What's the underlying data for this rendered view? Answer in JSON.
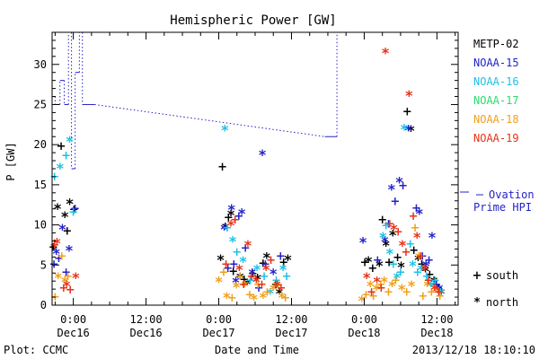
{
  "chart_data": {
    "type": "scatter",
    "title": "Hemispheric Power [GW]",
    "ylabel": "P [GW]",
    "xlabel": "Date and Time",
    "x_unit": "hours relative to 2013-12-16 00:00 UT",
    "xlim": [
      -3.5,
      63.5
    ],
    "ylim": [
      0,
      34
    ],
    "yticks": [
      0,
      5,
      10,
      15,
      20,
      25,
      30
    ],
    "xticks": [
      {
        "x": 0,
        "time": "0:00",
        "date": "Dec16"
      },
      {
        "x": 12,
        "time": "12:00",
        "date": "Dec16"
      },
      {
        "x": 24,
        "time": "0:00",
        "date": "Dec17"
      },
      {
        "x": 36,
        "time": "12:00",
        "date": "Dec17"
      },
      {
        "x": 48,
        "time": "0:00",
        "date": "Dec18"
      },
      {
        "x": 60,
        "time": "12:00",
        "date": "Dec18"
      }
    ],
    "legend_position": "right",
    "series": [
      {
        "name": "METP-02",
        "color": "#000000",
        "points": [
          [
            -3.3,
            7.2
          ],
          [
            -2.6,
            12.2
          ],
          [
            -2.0,
            19.8
          ],
          [
            -1.4,
            11.2
          ],
          [
            -1.0,
            9.2
          ],
          [
            -0.6,
            12.8
          ],
          [
            0.1,
            11.9
          ],
          [
            24.3,
            5.8
          ],
          [
            24.6,
            17.2
          ],
          [
            25.1,
            9.8
          ],
          [
            25.6,
            10.9
          ],
          [
            26.0,
            11.4
          ],
          [
            26.4,
            4.2
          ],
          [
            27.5,
            3.6
          ],
          [
            28.2,
            3.2
          ],
          [
            28.7,
            2.8
          ],
          [
            29.6,
            3.9
          ],
          [
            30.4,
            3.4
          ],
          [
            31.3,
            5.2
          ],
          [
            31.9,
            6.1
          ],
          [
            33.4,
            2.6
          ],
          [
            34.0,
            1.6
          ],
          [
            34.7,
            5.3
          ],
          [
            35.4,
            5.8
          ],
          [
            48.1,
            5.3
          ],
          [
            48.7,
            5.6
          ],
          [
            49.4,
            4.6
          ],
          [
            50.5,
            5.1
          ],
          [
            51.0,
            10.6
          ],
          [
            51.6,
            7.6
          ],
          [
            52.1,
            5.3
          ],
          [
            52.7,
            8.9
          ],
          [
            53.5,
            5.9
          ],
          [
            54.1,
            4.9
          ],
          [
            55.1,
            24.1
          ],
          [
            55.7,
            21.9
          ],
          [
            56.2,
            6.8
          ],
          [
            56.9,
            5.8
          ],
          [
            57.5,
            5.1
          ],
          [
            58.1,
            4.4
          ],
          [
            58.8,
            3.8
          ],
          [
            59.5,
            3.1
          ],
          [
            60.2,
            2.1
          ],
          [
            60.7,
            1.6
          ]
        ]
      },
      {
        "name": "NOAA-15",
        "color": "#2323c8",
        "points": [
          [
            -3.2,
            5.1
          ],
          [
            -2.8,
            6.6
          ],
          [
            -2.4,
            5.8
          ],
          [
            -1.8,
            9.6
          ],
          [
            -1.2,
            4.1
          ],
          [
            -0.7,
            7.0
          ],
          [
            0.3,
            12.0
          ],
          [
            24.9,
            9.6
          ],
          [
            25.5,
            4.6
          ],
          [
            26.1,
            12.1
          ],
          [
            26.5,
            5.1
          ],
          [
            26.8,
            3.0
          ],
          [
            27.3,
            11.1
          ],
          [
            27.8,
            11.6
          ],
          [
            28.4,
            7.1
          ],
          [
            29.5,
            4.1
          ],
          [
            30.6,
            2.1
          ],
          [
            31.2,
            18.9
          ],
          [
            31.7,
            5.1
          ],
          [
            33.0,
            4.1
          ],
          [
            34.2,
            6.1
          ],
          [
            47.8,
            8.0
          ],
          [
            50.2,
            5.6
          ],
          [
            51.4,
            8.1
          ],
          [
            52.0,
            10.1
          ],
          [
            52.5,
            14.6
          ],
          [
            53.1,
            12.9
          ],
          [
            53.8,
            15.5
          ],
          [
            54.4,
            14.9
          ],
          [
            55.3,
            22.0
          ],
          [
            56.6,
            12.1
          ],
          [
            57.1,
            11.6
          ],
          [
            57.6,
            6.1
          ],
          [
            58.2,
            5.1
          ],
          [
            58.7,
            5.6
          ],
          [
            59.2,
            8.6
          ],
          [
            59.9,
            2.6
          ],
          [
            60.4,
            2.1
          ]
        ]
      },
      {
        "name": "NOAA-16",
        "color": "#1ec0e6",
        "points": [
          [
            -3.1,
            16.0
          ],
          [
            -2.2,
            17.2
          ],
          [
            -1.2,
            18.6
          ],
          [
            -0.6,
            20.6
          ],
          [
            0.0,
            11.6
          ],
          [
            25.0,
            22.0
          ],
          [
            25.4,
            9.6
          ],
          [
            26.3,
            8.1
          ],
          [
            27.0,
            6.6
          ],
          [
            28.0,
            5.6
          ],
          [
            29.2,
            3.1
          ],
          [
            30.3,
            4.6
          ],
          [
            31.5,
            3.6
          ],
          [
            32.5,
            1.6
          ],
          [
            33.5,
            3.1
          ],
          [
            34.6,
            4.6
          ],
          [
            35.2,
            3.6
          ],
          [
            51.1,
            8.6
          ],
          [
            51.6,
            9.9
          ],
          [
            52.2,
            6.6
          ],
          [
            52.8,
            5.1
          ],
          [
            53.4,
            3.6
          ],
          [
            54.0,
            4.1
          ],
          [
            54.6,
            22.1
          ],
          [
            55.6,
            7.6
          ],
          [
            56.0,
            5.1
          ],
          [
            56.8,
            4.1
          ],
          [
            57.4,
            4.6
          ],
          [
            58.3,
            3.6
          ],
          [
            59.0,
            2.6
          ],
          [
            59.7,
            3.1
          ],
          [
            60.6,
            1.6
          ]
        ]
      },
      {
        "name": "NOAA-17",
        "color": "#28dc6e",
        "points": []
      },
      {
        "name": "NOAA-18",
        "color": "#f0a01e",
        "points": [
          [
            -3.0,
            1.0
          ],
          [
            -2.5,
            3.6
          ],
          [
            -1.9,
            6.1
          ],
          [
            -1.4,
            3.1
          ],
          [
            -0.9,
            3.6
          ],
          [
            24.0,
            3.1
          ],
          [
            24.8,
            4.1
          ],
          [
            25.3,
            1.1
          ],
          [
            26.2,
            0.9
          ],
          [
            26.9,
            2.4
          ],
          [
            27.5,
            3.6
          ],
          [
            28.3,
            2.6
          ],
          [
            29.1,
            1.3
          ],
          [
            29.8,
            0.9
          ],
          [
            30.5,
            2.6
          ],
          [
            31.3,
            1.1
          ],
          [
            32.0,
            1.6
          ],
          [
            33.0,
            2.1
          ],
          [
            33.8,
            2.6
          ],
          [
            34.4,
            1.1
          ],
          [
            35.0,
            0.9
          ],
          [
            47.6,
            0.7
          ],
          [
            48.3,
            1.3
          ],
          [
            49.0,
            2.6
          ],
          [
            49.5,
            1.1
          ],
          [
            50.0,
            2.1
          ],
          [
            50.7,
            2.6
          ],
          [
            51.3,
            3.1
          ],
          [
            52.0,
            1.6
          ],
          [
            52.6,
            2.6
          ],
          [
            53.2,
            3.1
          ],
          [
            54.2,
            2.1
          ],
          [
            55.0,
            1.6
          ],
          [
            55.8,
            2.6
          ],
          [
            56.4,
            9.6
          ],
          [
            57.0,
            6.1
          ],
          [
            57.7,
            1.1
          ],
          [
            58.4,
            2.6
          ],
          [
            59.1,
            1.6
          ],
          [
            59.8,
            1.9
          ],
          [
            60.5,
            1.1
          ]
        ]
      },
      {
        "name": "NOAA-19",
        "color": "#e63219",
        "points": [
          [
            -3.1,
            7.5
          ],
          [
            -2.7,
            7.9
          ],
          [
            -1.6,
            2.1
          ],
          [
            -1.1,
            2.6
          ],
          [
            -0.5,
            1.9
          ],
          [
            0.4,
            3.6
          ],
          [
            25.2,
            5.1
          ],
          [
            26.0,
            10.1
          ],
          [
            26.7,
            10.6
          ],
          [
            27.4,
            4.6
          ],
          [
            28.1,
            2.6
          ],
          [
            28.8,
            7.6
          ],
          [
            29.4,
            3.6
          ],
          [
            30.2,
            3.1
          ],
          [
            31.1,
            2.6
          ],
          [
            31.8,
            4.6
          ],
          [
            32.6,
            5.6
          ],
          [
            33.6,
            2.6
          ],
          [
            34.3,
            2.1
          ],
          [
            48.4,
            3.6
          ],
          [
            49.2,
            1.6
          ],
          [
            50.1,
            3.1
          ],
          [
            50.8,
            2.1
          ],
          [
            51.5,
            31.6
          ],
          [
            52.2,
            10.1
          ],
          [
            52.9,
            9.6
          ],
          [
            53.6,
            9.1
          ],
          [
            54.3,
            7.6
          ],
          [
            54.9,
            6.6
          ],
          [
            55.4,
            26.3
          ],
          [
            56.1,
            11.1
          ],
          [
            56.7,
            8.6
          ],
          [
            57.3,
            6.1
          ],
          [
            58.0,
            4.6
          ],
          [
            58.6,
            3.1
          ],
          [
            59.6,
            2.1
          ],
          [
            60.3,
            1.6
          ]
        ]
      }
    ],
    "ovation": {
      "name": "Ovation Prime HPI",
      "color": "#2323c8",
      "step_line": [
        [
          -3.5,
          26
        ],
        [
          -3.0,
          26
        ],
        [
          -3.0,
          25
        ],
        [
          -2.2,
          25
        ],
        [
          -2.2,
          28
        ],
        [
          -1.5,
          28
        ],
        [
          -1.5,
          25
        ],
        [
          -0.8,
          25
        ],
        [
          -0.8,
          34
        ],
        [
          -0.3,
          34
        ],
        [
          -0.3,
          17
        ],
        [
          0.3,
          17
        ],
        [
          0.3,
          29
        ],
        [
          1.0,
          29
        ],
        [
          1.0,
          34
        ],
        [
          1.5,
          34
        ],
        [
          1.5,
          25
        ],
        [
          3.5,
          25
        ],
        [
          41.5,
          21
        ],
        [
          43.5,
          21
        ],
        [
          43.5,
          34
        ]
      ]
    },
    "marker_key": [
      {
        "symbol": "+",
        "label": "south"
      },
      {
        "symbol": "*",
        "label": "north"
      }
    ]
  },
  "footer": {
    "left": "Plot: CCMC",
    "right": "2013/12/18 18:10:10"
  }
}
